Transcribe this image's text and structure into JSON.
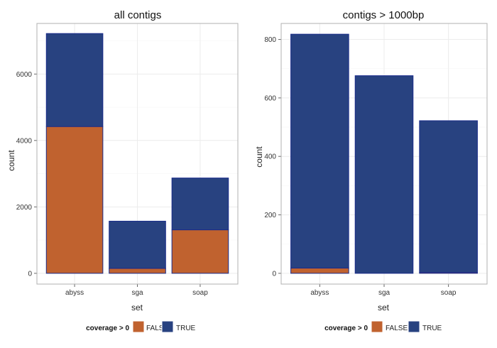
{
  "chart_data": [
    {
      "type": "bar",
      "stacked": true,
      "title": "all contigs",
      "xlabel": "set",
      "ylabel": "count",
      "categories": [
        "abyss",
        "sga",
        "soap"
      ],
      "series": [
        {
          "name": "FALSE",
          "color": "#c0622f",
          "values": [
            4420,
            150,
            1310
          ]
        },
        {
          "name": "TRUE",
          "color": "#284280",
          "values": [
            2800,
            1420,
            1560
          ]
        }
      ],
      "ylim": [
        0,
        7200
      ],
      "yticks": [
        0,
        2000,
        4000,
        6000
      ],
      "ytick_labels": [
        "0",
        "2000",
        "4000",
        "6000"
      ],
      "grid": true
    },
    {
      "type": "bar",
      "stacked": true,
      "title": "contigs > 1000bp",
      "xlabel": "set",
      "ylabel": "count",
      "categories": [
        "abyss",
        "sga",
        "soap"
      ],
      "series": [
        {
          "name": "FALSE",
          "color": "#c0622f",
          "values": [
            18,
            0,
            3
          ]
        },
        {
          "name": "TRUE",
          "color": "#284280",
          "values": [
            800,
            676,
            519
          ]
        }
      ],
      "ylim": [
        0,
        818
      ],
      "yticks": [
        0,
        200,
        400,
        600,
        800
      ],
      "ytick_labels": [
        "0",
        "200",
        "400",
        "600",
        "800"
      ],
      "grid": true
    }
  ],
  "legend": {
    "title": "coverage > 0",
    "entries": [
      {
        "label": "FALSE",
        "color": "#c0622f"
      },
      {
        "label": "TRUE",
        "color": "#284280"
      }
    ]
  },
  "colors": {
    "bar_outline": "#1a2b8a"
  }
}
